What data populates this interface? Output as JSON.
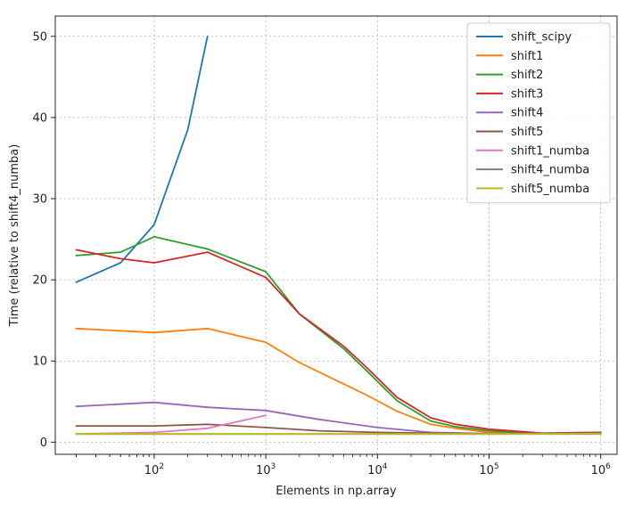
{
  "chart_data": {
    "type": "line",
    "xlabel": "Elements in np.array",
    "ylabel": "Time (relative to shift4_numba)",
    "xscale": "log",
    "xlim": [
      13,
      1400000
    ],
    "ylim": [
      -1.5,
      52.5
    ],
    "grid": true,
    "legend_position": "top-right",
    "x_ticks": [
      {
        "value": 100,
        "base": "10",
        "exp": "2"
      },
      {
        "value": 1000,
        "base": "10",
        "exp": "3"
      },
      {
        "value": 10000,
        "base": "10",
        "exp": "4"
      },
      {
        "value": 100000,
        "base": "10",
        "exp": "5"
      },
      {
        "value": 1000000,
        "base": "10",
        "exp": "6"
      }
    ],
    "y_ticks": [
      {
        "value": 0,
        "label": "0"
      },
      {
        "value": 10,
        "label": "10"
      },
      {
        "value": 20,
        "label": "20"
      },
      {
        "value": 30,
        "label": "30"
      },
      {
        "value": 40,
        "label": "40"
      },
      {
        "value": 50,
        "label": "50"
      }
    ],
    "series": [
      {
        "name": "shift_scipy",
        "color": "#1f77b4",
        "x": [
          20,
          50,
          100,
          200,
          300
        ],
        "y": [
          19.7,
          22.1,
          26.8,
          38.5,
          50.0
        ]
      },
      {
        "name": "shift1",
        "color": "#ff7f0e",
        "x": [
          20,
          100,
          300,
          1000,
          2000,
          8000,
          15000,
          30000,
          50000,
          100000,
          300000,
          1000000
        ],
        "y": [
          14.0,
          13.5,
          14.0,
          12.3,
          9.8,
          5.8,
          3.8,
          2.2,
          1.7,
          1.2,
          1.05,
          1.1
        ]
      },
      {
        "name": "shift2",
        "color": "#2ca02c",
        "x": [
          20,
          50,
          100,
          300,
          1000,
          2000,
          5000,
          8000,
          15000,
          30000,
          50000,
          100000,
          300000,
          1000000
        ],
        "y": [
          23.0,
          23.4,
          25.3,
          23.8,
          21.0,
          15.8,
          11.5,
          8.8,
          5.1,
          2.6,
          1.9,
          1.4,
          1.1,
          1.2
        ]
      },
      {
        "name": "shift3",
        "color": "#d62728",
        "x": [
          20,
          50,
          100,
          300,
          1000,
          2000,
          5000,
          8000,
          15000,
          30000,
          50000,
          100000,
          300000,
          1000000
        ],
        "y": [
          23.7,
          22.6,
          22.1,
          23.4,
          20.3,
          15.8,
          11.8,
          9.2,
          5.5,
          3.0,
          2.2,
          1.6,
          1.1,
          1.2
        ]
      },
      {
        "name": "shift4",
        "color": "#9467bd",
        "x": [
          20,
          100,
          300,
          1000,
          3000,
          10000,
          30000,
          100000,
          1000000
        ],
        "y": [
          4.4,
          4.9,
          4.3,
          3.9,
          2.8,
          1.8,
          1.2,
          1.05,
          1.1
        ]
      },
      {
        "name": "shift5",
        "color": "#8c564b",
        "x": [
          20,
          100,
          300,
          1000,
          3000,
          10000,
          30000,
          100000,
          1000000
        ],
        "y": [
          2.0,
          2.0,
          2.2,
          1.8,
          1.4,
          1.2,
          1.1,
          1.05,
          1.1
        ]
      },
      {
        "name": "shift1_numba",
        "color": "#e377c2",
        "x": [
          20,
          100,
          300,
          1000
        ],
        "y": [
          1.0,
          1.2,
          1.7,
          3.3
        ]
      },
      {
        "name": "shift4_numba",
        "color": "#7f7f7f",
        "x": [
          20,
          1000000
        ],
        "y": [
          1.0,
          1.0
        ]
      },
      {
        "name": "shift5_numba",
        "color": "#bcbd22",
        "x": [
          20,
          100,
          1000,
          10000,
          100000,
          1000000
        ],
        "y": [
          1.0,
          1.0,
          1.0,
          1.0,
          1.0,
          1.05
        ]
      }
    ]
  }
}
